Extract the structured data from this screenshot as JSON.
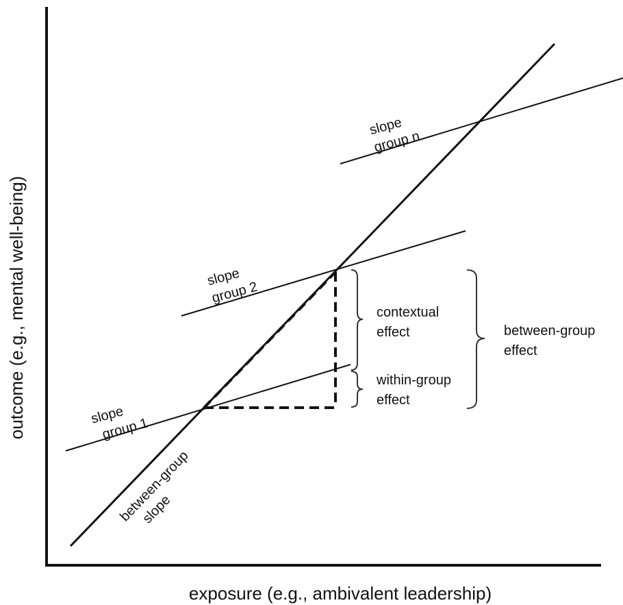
{
  "axes": {
    "x_label": "exposure (e.g., ambivalent leadership)",
    "y_label": "outcome (e.g., mental well-being)"
  },
  "labels": {
    "slope_group_n": [
      "slope",
      "group n"
    ],
    "slope_group_2": [
      "slope",
      "group 2"
    ],
    "slope_group_1": [
      "slope",
      "group 1"
    ],
    "between_group_slope": [
      "between-group",
      "slope"
    ],
    "contextual_effect": [
      "contextual",
      "effect"
    ],
    "within_group_effect": [
      "within-group",
      "effect"
    ],
    "between_group_effect": [
      "between-group",
      "effect"
    ]
  },
  "colors": {
    "ink": "#111111",
    "brace": "#333333"
  }
}
